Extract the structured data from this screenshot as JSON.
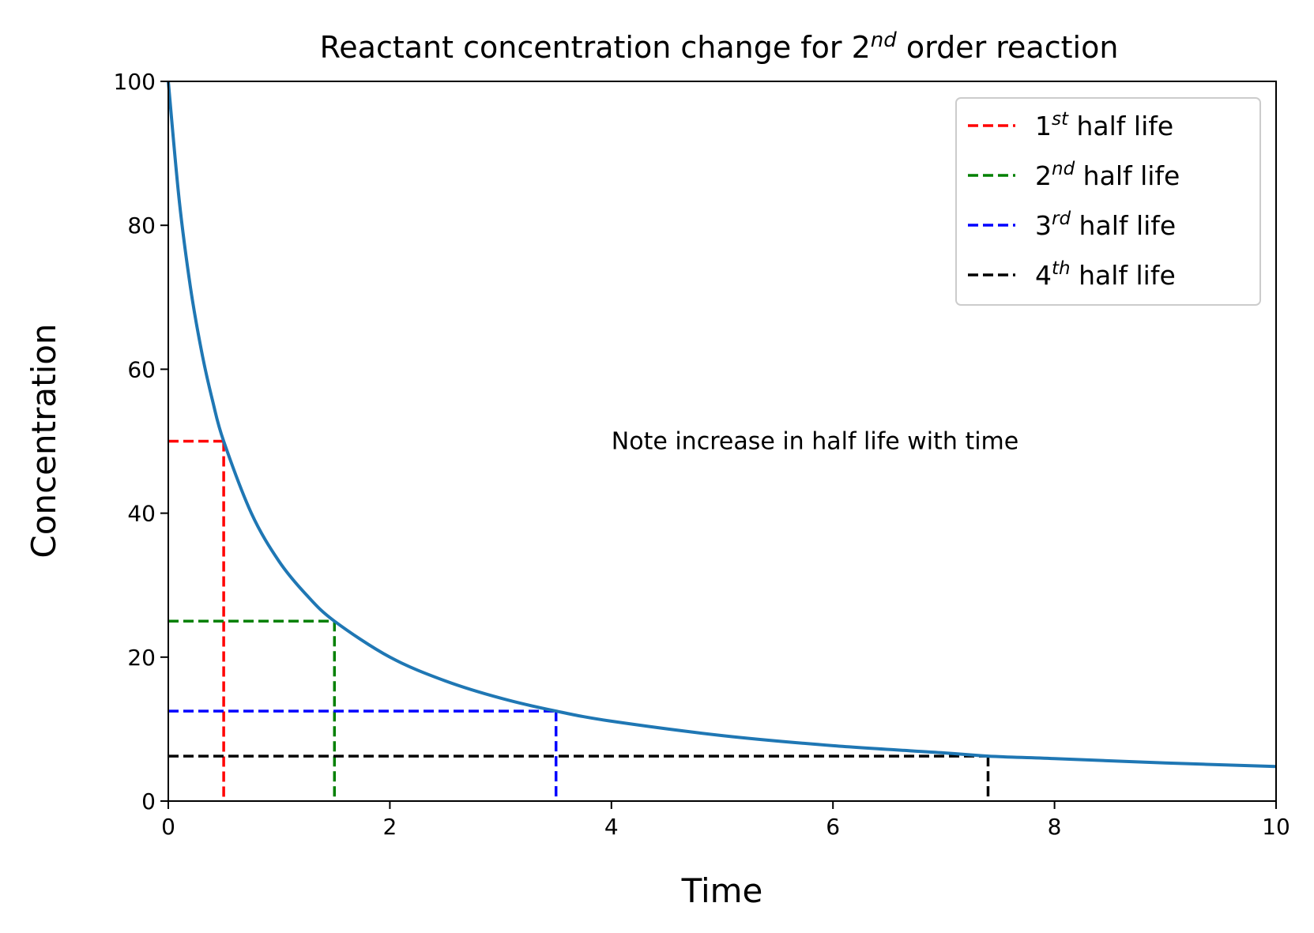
{
  "chart_data": {
    "type": "line",
    "title": "Reactant concentration change for 2",
    "title_sup": "nd",
    "title_rest": " order reaction",
    "xlabel": "Time",
    "ylabel": "Concentration",
    "xlim": [
      0,
      10
    ],
    "ylim": [
      0,
      100
    ],
    "xticks": [
      0,
      2,
      4,
      6,
      8,
      10
    ],
    "yticks": [
      0,
      20,
      40,
      60,
      80,
      100
    ],
    "grid": false,
    "legend_position": "top-right",
    "curve": {
      "color": "#1f77b4",
      "x": [
        0,
        0.1,
        0.2,
        0.3,
        0.4,
        0.5,
        0.75,
        1,
        1.25,
        1.5,
        2,
        2.5,
        3,
        3.5,
        4,
        5,
        6,
        7,
        7.4,
        8,
        9,
        10
      ],
      "y": [
        100,
        83.3,
        71.4,
        62.5,
        55.6,
        50,
        40,
        33.3,
        28.6,
        25,
        20,
        16.7,
        14.3,
        12.5,
        11.1,
        9.1,
        7.7,
        6.7,
        6.25,
        5.9,
        5.3,
        4.8
      ]
    },
    "half_lives": [
      {
        "number": "1",
        "sup": "st",
        "label": " half life",
        "t": 0.5,
        "c": 50,
        "color": "#ff0000"
      },
      {
        "number": "2",
        "sup": "nd",
        "label": " half life",
        "t": 1.5,
        "c": 25,
        "color": "#008000"
      },
      {
        "number": "3",
        "sup": "rd",
        "label": " half life",
        "t": 3.5,
        "c": 12.5,
        "color": "#0000ff"
      },
      {
        "number": "4",
        "sup": "th",
        "label": " half life",
        "t": 7.4,
        "c": 6.25,
        "color": "#000000"
      }
    ],
    "annotation": {
      "text": "Note increase in half life with time",
      "x": 4,
      "y": 50
    }
  }
}
